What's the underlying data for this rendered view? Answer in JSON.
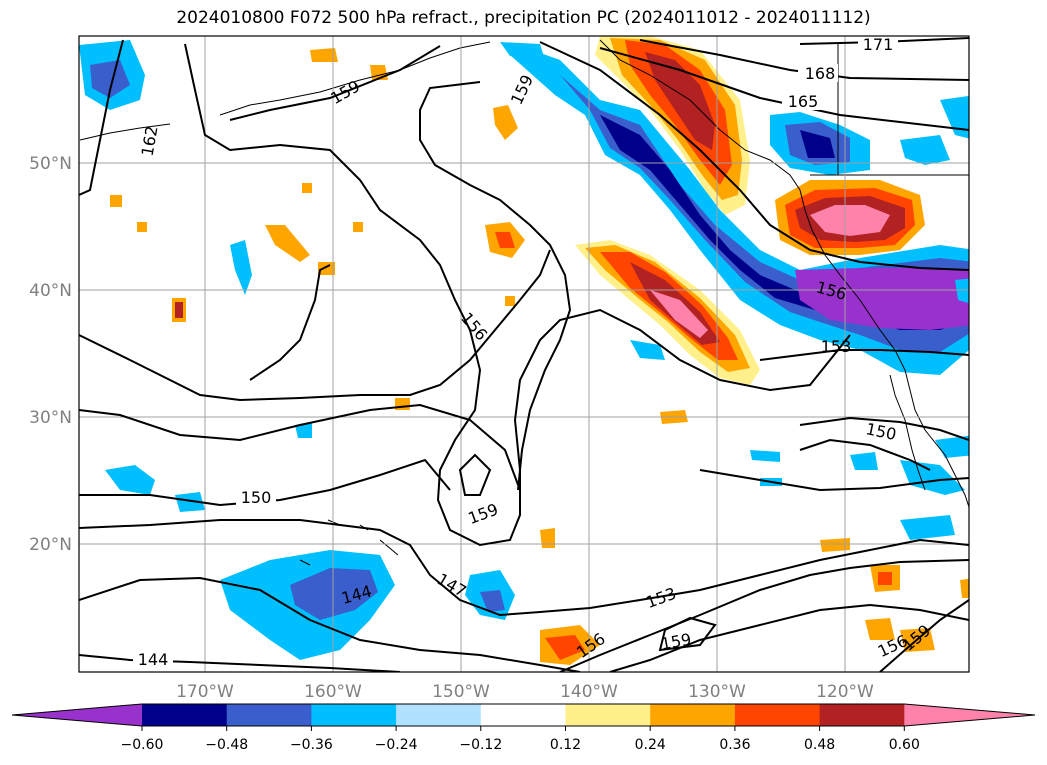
{
  "title": "2024010800 F072 500 hPa refract., precipitation PC (2024011012 - 2024011112)",
  "lat_labels": [
    "50°N",
    "40°N",
    "30°N",
    "20°N"
  ],
  "lon_labels": [
    "170°W",
    "160°W",
    "150°W",
    "140°W",
    "130°W",
    "120°W"
  ],
  "contour_labels": [
    "171",
    "168",
    "165",
    "162",
    "159",
    "159",
    "156",
    "156",
    "153",
    "150",
    "150",
    "147",
    "144",
    "144",
    "153",
    "156",
    "159",
    "156",
    "159"
  ],
  "colorbar": {
    "ticks": [
      "−0.60",
      "−0.48",
      "−0.36",
      "−0.24",
      "−0.12",
      "0.12",
      "0.24",
      "0.36",
      "0.48",
      "0.60"
    ],
    "colors": [
      "#9932cc",
      "#00008b",
      "#3a5fcd",
      "#00bfff",
      "#b0e2ff",
      "#ffffff",
      "#fff08c",
      "#ffa500",
      "#ff4500",
      "#b22222",
      "#ff82ab"
    ]
  },
  "palette": {
    "purple": "#9932cc",
    "navy": "#00008b",
    "blue": "#3a5fcd",
    "sky": "#00bfff",
    "light_sky": "#b0e2ff",
    "light_yellow": "#fff08c",
    "orange": "#ffa500",
    "orange_red": "#ff4500",
    "firebrick": "#b22222",
    "pink": "#ff82ab"
  }
}
